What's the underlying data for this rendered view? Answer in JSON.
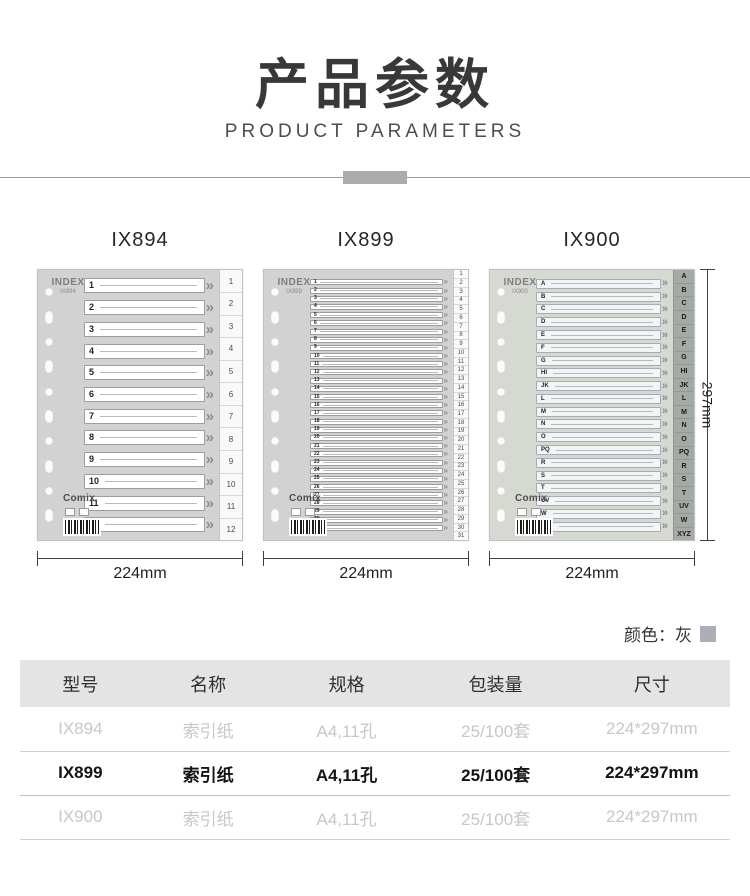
{
  "header": {
    "title": "产品参数",
    "subtitle": "PRODUCT PARAMETERS"
  },
  "products": [
    {
      "model": "IX894",
      "index_label": "INDEX",
      "brand": "Comix",
      "tabs": [
        "1",
        "2",
        "3",
        "4",
        "5",
        "6",
        "7",
        "8",
        "9",
        "10",
        "11",
        "12"
      ],
      "width_dim": "224mm"
    },
    {
      "model": "IX899",
      "index_label": "INDEX",
      "brand": "Comix",
      "tabs": [
        "1",
        "2",
        "3",
        "4",
        "5",
        "6",
        "7",
        "8",
        "9",
        "10",
        "11",
        "12",
        "13",
        "14",
        "15",
        "16",
        "17",
        "18",
        "19",
        "20",
        "21",
        "22",
        "23",
        "24",
        "25",
        "26",
        "27",
        "28",
        "29",
        "30",
        "31"
      ],
      "width_dim": "224mm"
    },
    {
      "model": "IX900",
      "index_label": "INDEX",
      "brand": "Comix",
      "tabs": [
        "A",
        "B",
        "C",
        "D",
        "E",
        "F",
        "G",
        "HI",
        "JK",
        "L",
        "M",
        "N",
        "O",
        "PQ",
        "R",
        "S",
        "T",
        "UV",
        "W",
        "XYZ"
      ],
      "width_dim": "224mm",
      "height_dim": "297mm"
    }
  ],
  "color_note": {
    "label": "颜色：灰",
    "swatch_color": "#a9aeb7"
  },
  "table": {
    "headers": [
      "型号",
      "名称",
      "规格",
      "包装量",
      "尺寸"
    ],
    "rows": [
      {
        "highlight": false,
        "cells": [
          "IX894",
          "索引纸",
          "A4,11孔",
          "25/100套",
          "224*297mm"
        ]
      },
      {
        "highlight": true,
        "cells": [
          "IX899",
          "索引纸",
          "A4,11孔",
          "25/100套",
          "224*297mm"
        ]
      },
      {
        "highlight": false,
        "cells": [
          "IX900",
          "索引纸",
          "A4,11孔",
          "25/100套",
          "224*297mm"
        ]
      }
    ]
  }
}
